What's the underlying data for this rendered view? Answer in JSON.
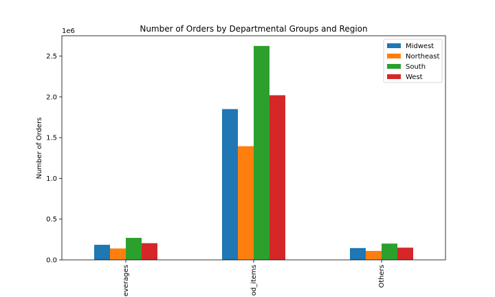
{
  "chart_data": {
    "type": "bar",
    "title": "Number of Orders by Departmental Groups and Region",
    "xlabel": "",
    "ylabel": "Number of Orders",
    "y_offset_label": "1e6",
    "y_scale": 1000000,
    "categories": [
      "Beverages",
      "Food_items",
      "Others"
    ],
    "category_tick_labels": [
      "everages",
      "od_items",
      "Others"
    ],
    "ylim": [
      0,
      2750000
    ],
    "yticks": [
      0,
      500000,
      1000000,
      1500000,
      2000000,
      2500000
    ],
    "ytick_labels": [
      "0.0",
      "0.5",
      "1.0",
      "1.5",
      "2.0",
      "2.5"
    ],
    "legend_position": "top-right",
    "grid": false,
    "series": [
      {
        "name": "Midwest",
        "color": "#1f77b4",
        "values": [
          185000,
          1850000,
          145000
        ]
      },
      {
        "name": "Northeast",
        "color": "#ff7f0e",
        "values": [
          140000,
          1395000,
          110000
        ]
      },
      {
        "name": "South",
        "color": "#2ca02c",
        "values": [
          270000,
          2625000,
          200000
        ]
      },
      {
        "name": "West",
        "color": "#d62728",
        "values": [
          205000,
          2020000,
          150000
        ]
      }
    ]
  }
}
